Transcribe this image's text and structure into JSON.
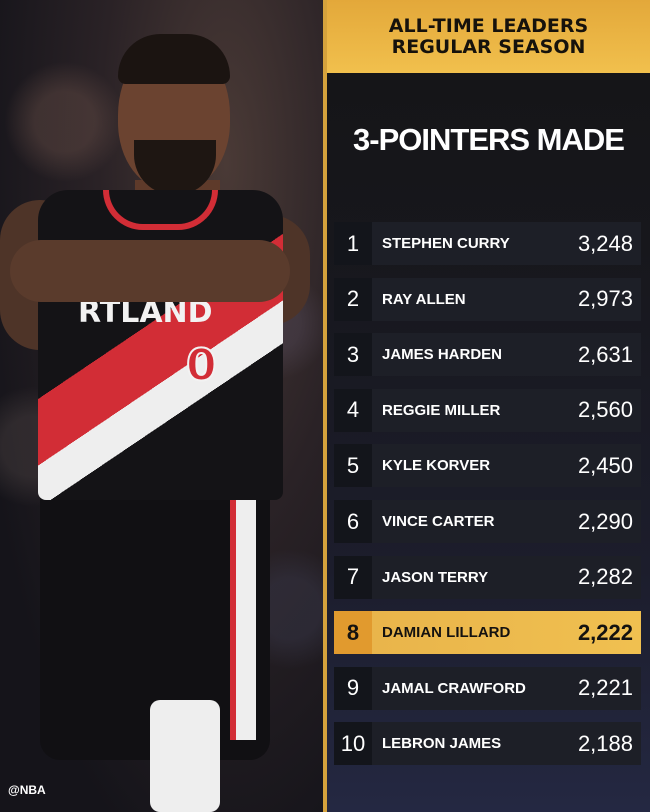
{
  "photo": {
    "jersey_text": "RTLAND",
    "jersey_number": "0",
    "watermark": "@NBA"
  },
  "banner": {
    "line1": "ALL-TIME LEADERS",
    "line2": "REGULAR SEASON"
  },
  "title": "3-POINTERS MADE",
  "colors": {
    "accent_gold": "#f0c050",
    "row_bg": "#1d1f27",
    "highlight_rank_bg": "#e19a2e"
  },
  "leaders": [
    {
      "rank": "1",
      "name": "STEPHEN CURRY",
      "value": "3,248"
    },
    {
      "rank": "2",
      "name": "RAY ALLEN",
      "value": "2,973"
    },
    {
      "rank": "3",
      "name": "JAMES HARDEN",
      "value": "2,631"
    },
    {
      "rank": "4",
      "name": "REGGIE MILLER",
      "value": "2,560"
    },
    {
      "rank": "5",
      "name": "KYLE KORVER",
      "value": "2,450"
    },
    {
      "rank": "6",
      "name": "VINCE CARTER",
      "value": "2,290"
    },
    {
      "rank": "7",
      "name": "JASON TERRY",
      "value": "2,282"
    },
    {
      "rank": "8",
      "name": "DAMIAN LILLARD",
      "value": "2,222",
      "highlighted": true
    },
    {
      "rank": "9",
      "name": "JAMAL CRAWFORD",
      "value": "2,221"
    },
    {
      "rank": "10",
      "name": "LEBRON JAMES",
      "value": "2,188"
    }
  ]
}
